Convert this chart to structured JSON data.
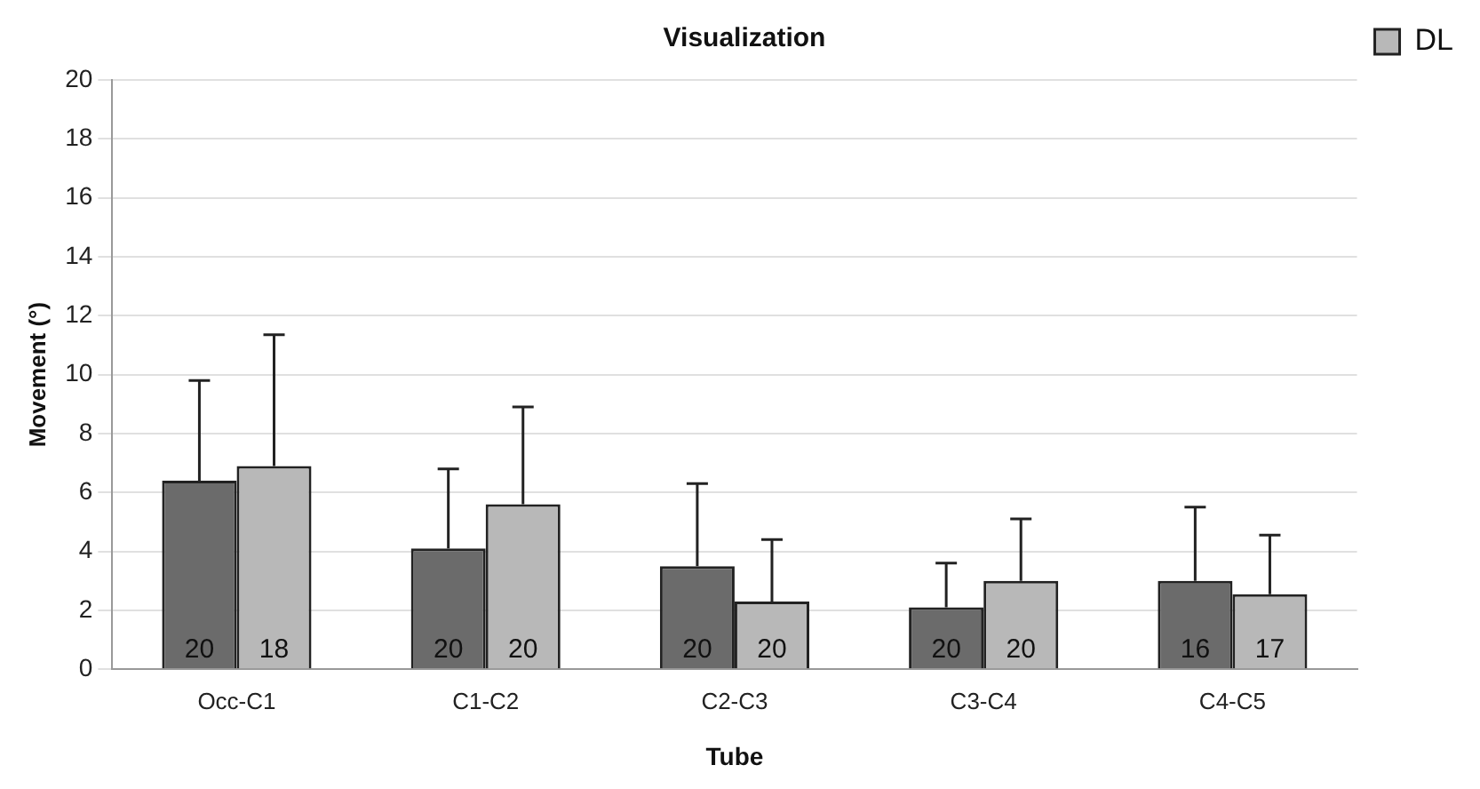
{
  "chart_data": {
    "type": "bar",
    "title": "Visualization",
    "xlabel": "Tube",
    "ylabel": "Movement (°)",
    "categories": [
      "Occ-C1",
      "C1-C2",
      "C2-C3",
      "C3-C4",
      "C4-C5"
    ],
    "series": [
      {
        "color": "#6b6b6b",
        "values": [
          6.4,
          4.1,
          3.5,
          2.1,
          3.0
        ],
        "errors": [
          [
            6.4,
            9.8
          ],
          [
            4.1,
            6.8
          ],
          [
            3.5,
            6.3
          ],
          [
            2.1,
            3.6
          ],
          [
            3.0,
            5.5
          ]
        ]
      },
      {
        "name": "DL",
        "color": "#b8b8b8",
        "values": [
          6.9,
          5.6,
          2.3,
          3.0,
          2.55
        ],
        "errors": [
          [
            6.9,
            11.35
          ],
          [
            5.6,
            8.9
          ],
          [
            2.3,
            4.4
          ],
          [
            3.0,
            5.1
          ],
          [
            2.55,
            4.55
          ]
        ]
      }
    ],
    "annotations": [
      {
        "text": "20",
        "x": "Occ-C1",
        "y": 0
      },
      {
        "text": "18",
        "x": "Occ-C1",
        "y": 0
      },
      {
        "text": "20",
        "x": "C1-C2",
        "y": 0
      },
      {
        "text": "20",
        "x": "C1-C2",
        "y": 0
      },
      {
        "text": "20",
        "x": "C2-C3",
        "y": 0
      },
      {
        "text": "20",
        "x": "C2-C3",
        "y": 0
      },
      {
        "text": "20",
        "x": "C3-C4",
        "y": 0
      },
      {
        "text": "20",
        "x": "C3-C4",
        "y": 0
      },
      {
        "text": "16",
        "x": "C4-C5",
        "y": 0
      },
      {
        "text": "17",
        "x": "C4-C5",
        "y": 0
      }
    ],
    "ylim": [
      0,
      20
    ],
    "yticks": [
      0,
      2,
      4,
      6,
      8,
      10,
      12,
      14,
      16,
      18,
      20
    ],
    "grid": "y",
    "legend": "top right"
  }
}
